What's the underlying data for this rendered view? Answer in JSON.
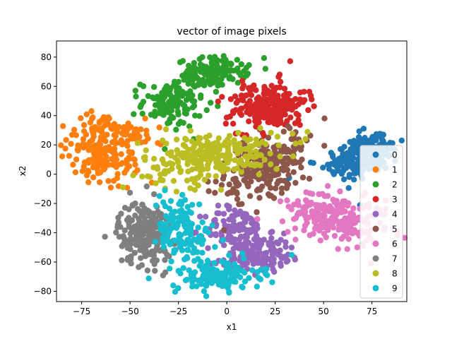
{
  "chart_data": {
    "type": "scatter",
    "title": "vector of image pixels",
    "xlabel": "x1",
    "ylabel": "x2",
    "xlim": [
      -88,
      93
    ],
    "ylim": [
      -87,
      91
    ],
    "xticks": [
      -75,
      -50,
      -25,
      0,
      25,
      50,
      75
    ],
    "yticks": [
      -80,
      -60,
      -40,
      -20,
      0,
      20,
      40,
      60,
      80
    ],
    "grid": false,
    "legend_position": "right",
    "series": [
      {
        "name": "0",
        "color": "#1f77b4",
        "clusters": [
          {
            "cx": 70,
            "cy": 12,
            "sx": 10,
            "sy": 7,
            "rot": 0.45,
            "n": 240
          }
        ]
      },
      {
        "name": "1",
        "color": "#ff7f0e",
        "clusters": [
          {
            "cx": -65,
            "cy": 13,
            "sx": 7,
            "sy": 11,
            "rot": 0.75,
            "n": 150
          },
          {
            "cx": -55,
            "cy": 30,
            "sx": 4,
            "sy": 9,
            "rot": 1.3,
            "n": 80
          }
        ]
      },
      {
        "name": "2",
        "color": "#2ca02c",
        "clusters": [
          {
            "cx": -7,
            "cy": 70,
            "sx": 9,
            "sy": 5,
            "rot": 0.1,
            "n": 140
          },
          {
            "cx": -28,
            "cy": 48,
            "sx": 8,
            "sy": 8,
            "rot": 0,
            "n": 120
          }
        ]
      },
      {
        "name": "3",
        "color": "#d62728",
        "clusters": [
          {
            "cx": 22,
            "cy": 47,
            "sx": 10,
            "sy": 8,
            "rot": 0.2,
            "n": 220
          }
        ]
      },
      {
        "name": "4",
        "color": "#9467bd",
        "clusters": [
          {
            "cx": 5,
            "cy": -38,
            "sx": 8,
            "sy": 8,
            "rot": 0,
            "n": 120
          },
          {
            "cx": 18,
            "cy": -55,
            "sx": 10,
            "sy": 6,
            "rot": 0.2,
            "n": 120
          }
        ]
      },
      {
        "name": "5",
        "color": "#8c564b",
        "clusters": [
          {
            "cx": 20,
            "cy": 5,
            "sx": 14,
            "sy": 8,
            "rot": 0.75,
            "n": 240
          }
        ]
      },
      {
        "name": "6",
        "color": "#e377c2",
        "clusters": [
          {
            "cx": 57,
            "cy": -30,
            "sx": 13,
            "sy": 8,
            "rot": -0.35,
            "n": 240
          }
        ]
      },
      {
        "name": "7",
        "color": "#7f7f7f",
        "clusters": [
          {
            "cx": -42,
            "cy": -40,
            "sx": 7,
            "sy": 11,
            "rot": 0,
            "n": 220
          }
        ]
      },
      {
        "name": "8",
        "color": "#bcbd22",
        "clusters": [
          {
            "cx": -8,
            "cy": 12,
            "sx": 18,
            "sy": 8,
            "rot": 0.15,
            "n": 260
          }
        ]
      },
      {
        "name": "9",
        "color": "#17becf",
        "clusters": [
          {
            "cx": -22,
            "cy": -38,
            "sx": 7,
            "sy": 13,
            "rot": 0.2,
            "n": 140
          },
          {
            "cx": -5,
            "cy": -70,
            "sx": 11,
            "sy": 5,
            "rot": 0.1,
            "n": 140
          }
        ]
      }
    ]
  }
}
